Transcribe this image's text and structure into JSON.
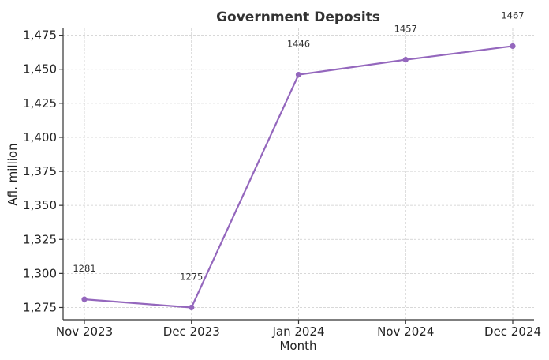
{
  "chart_data": {
    "type": "line",
    "title": "Government Deposits",
    "xlabel": "Month",
    "ylabel": "Afl. million",
    "categories": [
      "Nov 2023",
      "Dec 2023",
      "Jan 2024",
      "Nov 2024",
      "Dec 2024"
    ],
    "series": [
      {
        "values": [
          1281,
          1275,
          1446,
          1457,
          1467
        ],
        "color": "#9467bd",
        "marker": "circle"
      }
    ],
    "data_labels": [
      "1281",
      "1275",
      "1446",
      "1457",
      "1467"
    ],
    "ylim": [
      1266,
      1480
    ],
    "yticks": [
      1275,
      1300,
      1325,
      1350,
      1375,
      1400,
      1425,
      1450,
      1475
    ],
    "ytick_labels": [
      "1,275",
      "1,300",
      "1,325",
      "1,350",
      "1,375",
      "1,400",
      "1,425",
      "1,450",
      "1,475"
    ],
    "grid": true
  }
}
